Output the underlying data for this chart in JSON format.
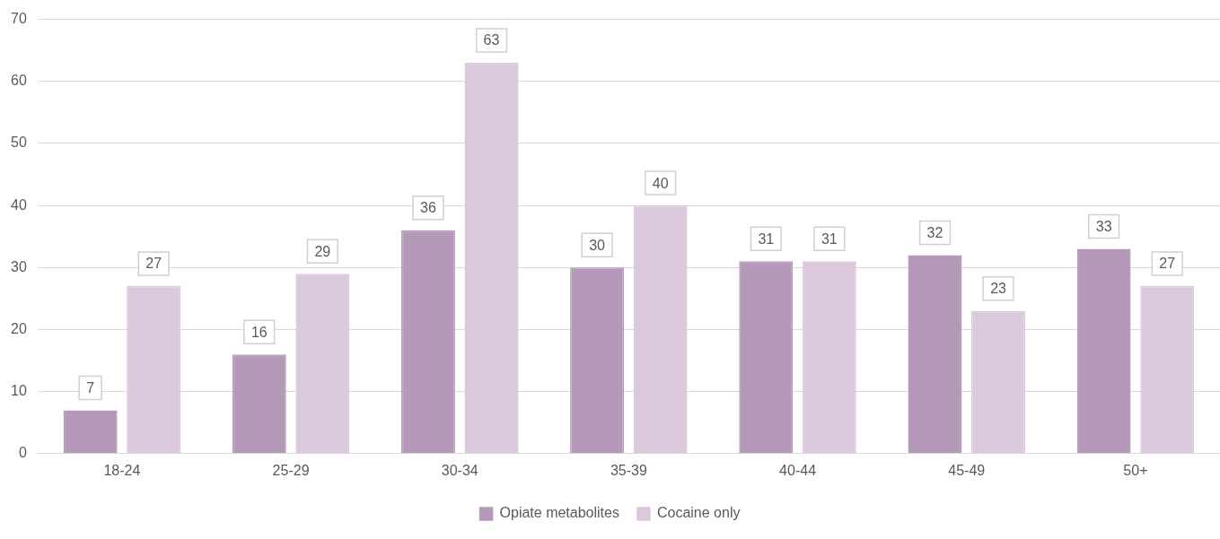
{
  "chart_data": {
    "type": "bar",
    "categories": [
      "18-24",
      "25-29",
      "30-34",
      "35-39",
      "40-44",
      "45-49",
      "50+"
    ],
    "series": [
      {
        "name": "Opiate metabolites",
        "color": "#b49ab8",
        "values": [
          7,
          16,
          36,
          30,
          31,
          32,
          33
        ]
      },
      {
        "name": "Cocaine only",
        "color": "#dcc8dc",
        "values": [
          27,
          29,
          63,
          40,
          31,
          23,
          27
        ]
      }
    ],
    "ylim": [
      0,
      70
    ],
    "yticks": [
      0,
      10,
      20,
      30,
      40,
      50,
      60,
      70
    ],
    "grid": "y",
    "legend": "bottom",
    "data_labels": true
  }
}
